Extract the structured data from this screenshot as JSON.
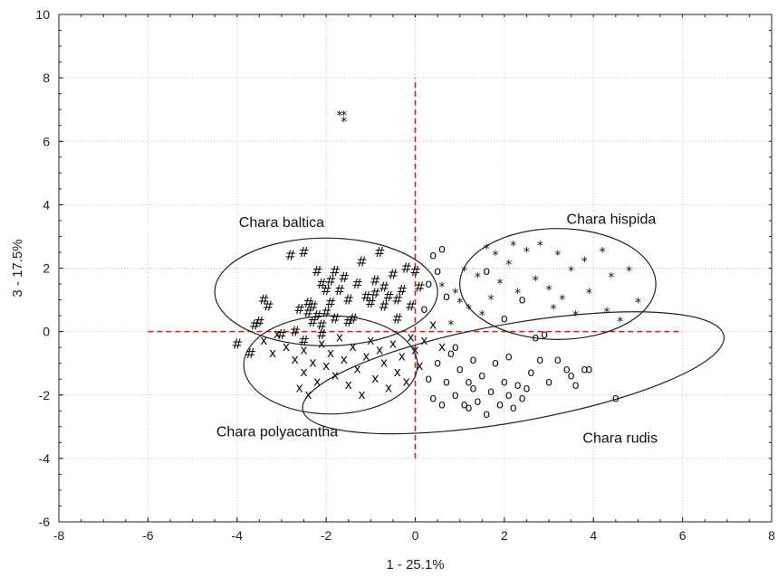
{
  "chart_data": {
    "type": "scatter",
    "xlabel": "1 - 25.1%",
    "ylabel": "3 - 17.5%",
    "xlim": [
      -8,
      8
    ],
    "ylim": [
      -6,
      10
    ],
    "xticks": [
      -8,
      -6,
      -4,
      -2,
      0,
      2,
      4,
      6,
      8
    ],
    "yticks": [
      -6,
      -4,
      -2,
      0,
      2,
      4,
      6,
      8,
      10
    ],
    "grid": true,
    "reference_lines": {
      "horizontal": {
        "y": 0,
        "x_range": [
          -6,
          6
        ],
        "color": "#cc2222"
      },
      "vertical": {
        "x": 0,
        "y_range": [
          -4,
          8
        ],
        "color": "#cc2222"
      }
    },
    "groups": [
      {
        "label": "Chara baltica",
        "marker": "#",
        "ellipse": {
          "cx": -2.0,
          "cy": 1.25,
          "rx": 2.5,
          "ry": 1.7,
          "angle": 0
        },
        "label_position": {
          "x": -3.0,
          "y": 3.3
        },
        "points": [
          [
            -4.0,
            -0.4
          ],
          [
            -3.7,
            -0.7
          ],
          [
            -3.6,
            0.2
          ],
          [
            -3.5,
            0.3
          ],
          [
            -3.4,
            1.0
          ],
          [
            -3.3,
            0.8
          ],
          [
            -3.0,
            -0.1
          ],
          [
            -2.8,
            2.4
          ],
          [
            -2.7,
            0.0
          ],
          [
            -2.5,
            -0.3
          ],
          [
            -2.5,
            2.5
          ],
          [
            -2.4,
            0.9
          ],
          [
            -2.4,
            0.6
          ],
          [
            -2.3,
            0.3
          ],
          [
            -2.3,
            0.8
          ],
          [
            -2.2,
            1.9
          ],
          [
            -2.2,
            0.5
          ],
          [
            -2.1,
            -0.1
          ],
          [
            -2.1,
            0.2
          ],
          [
            -2.0,
            1.3
          ],
          [
            -2.0,
            0.6
          ],
          [
            -1.9,
            0.9
          ],
          [
            -1.9,
            1.6
          ],
          [
            -1.8,
            1.9
          ],
          [
            -1.8,
            0.4
          ],
          [
            -1.7,
            1.3
          ],
          [
            -1.6,
            1.7
          ],
          [
            -1.5,
            1.0
          ],
          [
            -1.4,
            0.4
          ],
          [
            -1.3,
            1.5
          ],
          [
            -1.2,
            2.2
          ],
          [
            -1.1,
            1.1
          ],
          [
            -1.0,
            0.9
          ],
          [
            -0.9,
            1.6
          ],
          [
            -0.8,
            2.5
          ],
          [
            -0.7,
            0.8
          ],
          [
            -0.7,
            1.4
          ],
          [
            -0.6,
            1.1
          ],
          [
            -0.5,
            1.8
          ],
          [
            -0.4,
            1.0
          ],
          [
            -0.3,
            1.3
          ],
          [
            -0.2,
            2.0
          ],
          [
            -0.1,
            0.8
          ],
          [
            0.0,
            1.9
          ],
          [
            0.1,
            1.4
          ],
          [
            -2.6,
            0.7
          ],
          [
            -1.5,
            0.3
          ],
          [
            -0.9,
            1.2
          ],
          [
            -0.4,
            0.4
          ],
          [
            -2.1,
            1.5
          ]
        ]
      },
      {
        "label": "Chara hispida",
        "marker": "*",
        "ellipse": {
          "cx": 3.2,
          "cy": 1.5,
          "rx": 2.2,
          "ry": 1.75,
          "angle": 0
        },
        "label_position": {
          "x": 4.4,
          "y": 3.4
        },
        "points": [
          [
            -1.6,
            6.9
          ],
          [
            -1.7,
            6.9
          ],
          [
            -1.6,
            6.7
          ],
          [
            0.6,
            1.5
          ],
          [
            0.8,
            0.3
          ],
          [
            0.9,
            1.3
          ],
          [
            1.0,
            1.0
          ],
          [
            1.1,
            2.0
          ],
          [
            1.2,
            0.8
          ],
          [
            1.4,
            1.8
          ],
          [
            1.5,
            0.6
          ],
          [
            1.6,
            2.7
          ],
          [
            1.7,
            1.1
          ],
          [
            1.8,
            2.5
          ],
          [
            1.9,
            1.6
          ],
          [
            2.1,
            2.2
          ],
          [
            2.3,
            1.3
          ],
          [
            2.5,
            2.6
          ],
          [
            2.7,
            1.7
          ],
          [
            2.8,
            2.8
          ],
          [
            3.0,
            1.4
          ],
          [
            3.2,
            2.5
          ],
          [
            3.3,
            1.1
          ],
          [
            3.5,
            2.0
          ],
          [
            3.6,
            0.6
          ],
          [
            3.8,
            2.3
          ],
          [
            3.9,
            1.3
          ],
          [
            4.2,
            2.6
          ],
          [
            4.3,
            0.7
          ],
          [
            4.4,
            1.8
          ],
          [
            4.6,
            0.4
          ],
          [
            4.8,
            2.0
          ],
          [
            5.0,
            1.0
          ],
          [
            3.1,
            0.8
          ],
          [
            2.2,
            2.8
          ]
        ]
      },
      {
        "label": "Chara polyacantha",
        "marker": "x",
        "ellipse": {
          "cx": -1.9,
          "cy": -1.05,
          "rx": 1.95,
          "ry": 1.55,
          "angle": 0
        },
        "label_position": {
          "x": -3.1,
          "y": -3.3
        },
        "points": [
          [
            -3.4,
            -0.3
          ],
          [
            -3.2,
            -0.7
          ],
          [
            -3.1,
            -0.1
          ],
          [
            -2.9,
            -0.5
          ],
          [
            -2.7,
            -0.9
          ],
          [
            -2.6,
            -1.8
          ],
          [
            -2.5,
            -1.3
          ],
          [
            -2.5,
            -0.6
          ],
          [
            -2.4,
            -2.0
          ],
          [
            -2.3,
            -1.0
          ],
          [
            -2.2,
            -1.6
          ],
          [
            -2.1,
            -0.4
          ],
          [
            -2.0,
            -1.1
          ],
          [
            -1.9,
            -0.7
          ],
          [
            -1.8,
            -1.4
          ],
          [
            -1.7,
            -0.2
          ],
          [
            -1.6,
            -0.9
          ],
          [
            -1.5,
            -1.7
          ],
          [
            -1.4,
            -0.5
          ],
          [
            -1.3,
            -1.2
          ],
          [
            -1.2,
            -2.0
          ],
          [
            -1.1,
            -0.8
          ],
          [
            -1.0,
            -0.3
          ],
          [
            -0.9,
            -1.5
          ],
          [
            -0.8,
            -0.6
          ],
          [
            -0.7,
            -1.0
          ],
          [
            -0.6,
            -1.8
          ],
          [
            -0.5,
            -0.4
          ],
          [
            -0.4,
            -1.3
          ],
          [
            -0.3,
            -0.8
          ],
          [
            -0.2,
            -1.6
          ],
          [
            -0.1,
            -0.2
          ],
          [
            0.0,
            -0.6
          ],
          [
            0.1,
            -1.1
          ],
          [
            0.2,
            -0.3
          ],
          [
            0.4,
            0.2
          ],
          [
            0.6,
            -0.5
          ]
        ]
      },
      {
        "label": "Chara rudis",
        "marker": "o",
        "ellipse": {
          "cx": 2.2,
          "cy": -1.3,
          "rx": 4.8,
          "ry": 1.55,
          "angle": -10
        },
        "label_position": {
          "x": 4.6,
          "y": -3.5
        },
        "points": [
          [
            0.2,
            0.7
          ],
          [
            0.3,
            1.5
          ],
          [
            0.4,
            2.4
          ],
          [
            0.5,
            1.9
          ],
          [
            0.6,
            2.6
          ],
          [
            0.7,
            1.1
          ],
          [
            0.3,
            -1.5
          ],
          [
            0.4,
            -2.1
          ],
          [
            0.5,
            -1.0
          ],
          [
            0.6,
            -2.3
          ],
          [
            0.7,
            -1.6
          ],
          [
            0.8,
            -0.7
          ],
          [
            0.9,
            -2.0
          ],
          [
            1.0,
            -1.2
          ],
          [
            1.1,
            -2.3
          ],
          [
            1.2,
            -1.6
          ],
          [
            1.3,
            -0.9
          ],
          [
            1.4,
            -2.2
          ],
          [
            1.5,
            -1.4
          ],
          [
            1.6,
            -2.6
          ],
          [
            1.7,
            -1.9
          ],
          [
            1.8,
            -1.0
          ],
          [
            1.9,
            -2.3
          ],
          [
            2.0,
            -1.6
          ],
          [
            2.1,
            -0.8
          ],
          [
            2.2,
            -2.4
          ],
          [
            2.3,
            -1.7
          ],
          [
            2.4,
            -2.1
          ],
          [
            2.6,
            -1.3
          ],
          [
            2.8,
            -0.9
          ],
          [
            3.0,
            -1.6
          ],
          [
            3.2,
            -0.9
          ],
          [
            3.5,
            -1.4
          ],
          [
            3.6,
            -1.7
          ],
          [
            3.8,
            -1.2
          ],
          [
            3.9,
            -1.2
          ],
          [
            4.5,
            -2.1
          ],
          [
            2.7,
            -0.2
          ],
          [
            1.6,
            1.9
          ],
          [
            2.0,
            0.4
          ],
          [
            2.4,
            1.0
          ],
          [
            2.9,
            -0.1
          ],
          [
            0.9,
            -0.5
          ],
          [
            1.3,
            -1.8
          ],
          [
            2.5,
            -1.8
          ],
          [
            3.4,
            -1.2
          ],
          [
            1.2,
            -2.4
          ],
          [
            2.1,
            -2.0
          ]
        ]
      }
    ]
  }
}
